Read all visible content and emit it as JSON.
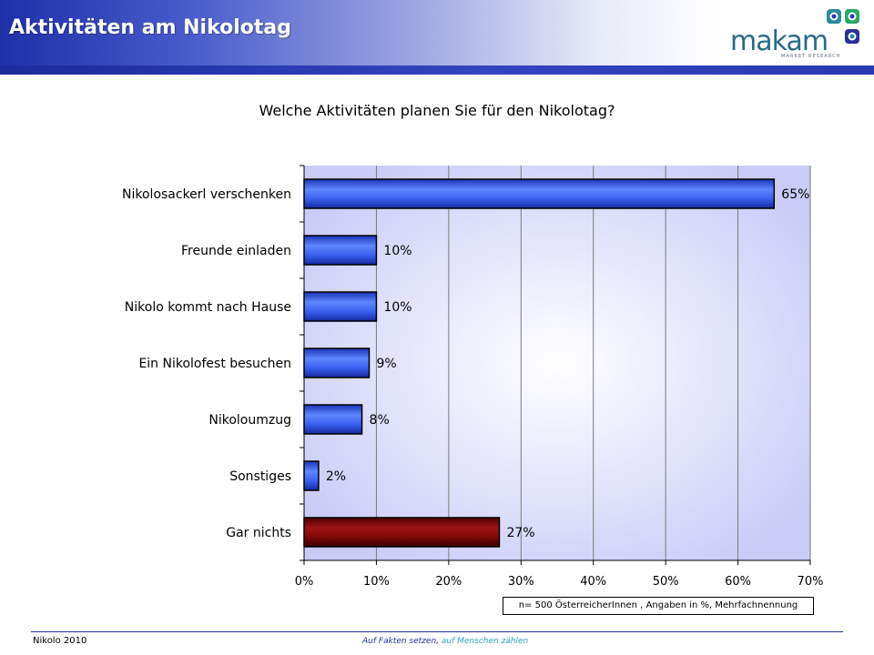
{
  "header": {
    "title": "Aktivitäten am Nikolotag",
    "logo_word": "makam",
    "logo_tagline": "MARKET RESEARCH"
  },
  "chart_data": {
    "type": "bar",
    "orientation": "horizontal",
    "title": "Welche Aktivitäten planen Sie für den Nikolotag?",
    "categories": [
      "Nikolosackerl verschenken",
      "Freunde einladen",
      "Nikolo kommt nach Hause",
      "Ein Nikolofest besuchen",
      "Nikoloumzug",
      "Sonstiges",
      "Gar nichts"
    ],
    "values": [
      65,
      10,
      10,
      9,
      8,
      2,
      27
    ],
    "value_labels": [
      "65%",
      "10%",
      "10%",
      "9%",
      "8%",
      "2%",
      "27%"
    ],
    "bar_colors": [
      "#2b52e8",
      "#2b52e8",
      "#2b52e8",
      "#2b52e8",
      "#2b52e8",
      "#2b52e8",
      "#8a0a0a"
    ],
    "xlim": [
      0,
      70
    ],
    "xticks": [
      0,
      10,
      20,
      30,
      40,
      50,
      60,
      70
    ],
    "xtick_labels": [
      "0%",
      "10%",
      "20%",
      "30%",
      "40%",
      "50%",
      "60%",
      "70%"
    ],
    "xlabel": "",
    "ylabel": "",
    "grid": "vertical",
    "legend": "none",
    "plot_background": "#c9cbf7"
  },
  "footnote": "n= 500 ÖsterreicherInnen , Angaben in %, Mehrfachnennung",
  "footer": {
    "left": "Nikolo 2010",
    "slogan_a": "Auf Fakten setzen,",
    "slogan_b": " auf Menschen zählen"
  }
}
